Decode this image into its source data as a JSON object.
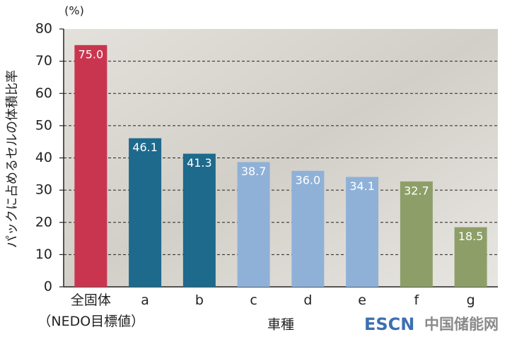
{
  "chart_data": {
    "type": "bar",
    "y_label": "パックに占めるセルの体積比率",
    "unit_label": "(%)",
    "x_label": "車種",
    "watermark": [
      "ESCN",
      "中国储能网"
    ],
    "categories": [
      "全固体\n（NEDO目標値）",
      "a",
      "b",
      "c",
      "d",
      "e",
      "f",
      "g"
    ],
    "values": [
      75.0,
      46.1,
      41.3,
      38.7,
      36.0,
      34.1,
      32.7,
      18.5
    ],
    "value_labels": [
      "75.0",
      "46.1",
      "41.3",
      "38.7",
      "36.0",
      "34.1",
      "32.7",
      "18.5"
    ],
    "colors": [
      "#c9354f",
      "#1d6a8d",
      "#1d6a8d",
      "#8fb1d8",
      "#8fb1d8",
      "#8fb1d8",
      "#8e9e68",
      "#8e9e68"
    ],
    "ylim": [
      0,
      80
    ],
    "yticks": [
      0,
      10,
      20,
      30,
      40,
      50,
      60,
      70,
      80
    ],
    "grid": true
  }
}
